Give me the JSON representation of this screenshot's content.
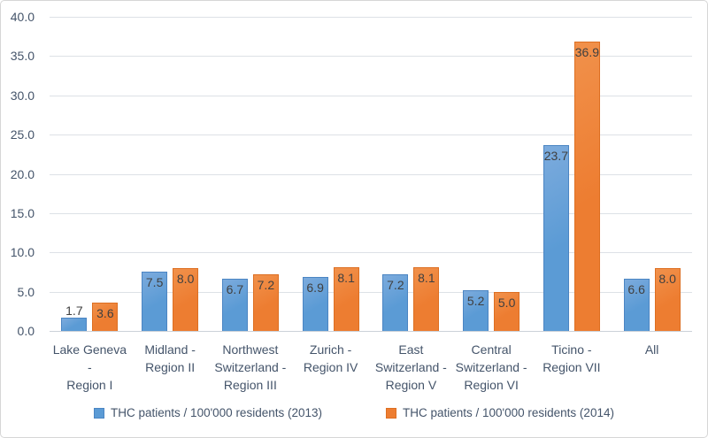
{
  "chart_data": {
    "type": "bar",
    "title": "",
    "categories": [
      "Lake Geneva - Region I",
      "Midland - Region II",
      "Northwest Switzerland - Region III",
      "Zurich - Region IV",
      "East Switzerland - Region V",
      "Central Switzerland - Region VI",
      "Ticino - Region VII",
      "All"
    ],
    "category_label_lines": [
      [
        "Lake Geneva -",
        "Region I"
      ],
      [
        "Midland -",
        "Region II"
      ],
      [
        "Northwest",
        "Switzerland -",
        "Region III"
      ],
      [
        "Zurich -",
        "Region IV"
      ],
      [
        "East",
        "Switzerland -",
        "Region V"
      ],
      [
        "Central",
        "Switzerland -",
        "Region VI"
      ],
      [
        "Ticino -",
        "Region VII"
      ],
      [
        "All"
      ]
    ],
    "series": [
      {
        "name": "THC patients / 100'000 residents (2013)",
        "color": "#5B9BD5",
        "values": [
          1.7,
          7.5,
          6.7,
          6.9,
          7.2,
          5.2,
          23.7,
          6.6
        ]
      },
      {
        "name": "THC patients / 100'000 residents (2014)",
        "color": "#ED7D31",
        "values": [
          3.6,
          8.0,
          7.2,
          8.1,
          8.1,
          5.0,
          36.9,
          8.0
        ]
      }
    ],
    "xlabel": "",
    "ylabel": "",
    "ylim": [
      0,
      40
    ],
    "yticks": [
      0,
      5,
      10,
      15,
      20,
      25,
      30,
      35,
      40
    ],
    "ytick_format": "one-decimal",
    "grid": true,
    "data_labels": true,
    "legend_position": "bottom",
    "colors": {
      "axis_text": "#44546A",
      "data_label_text": "#404040",
      "gridline": "#DDE1E6",
      "background": "#FFFFFF"
    }
  }
}
